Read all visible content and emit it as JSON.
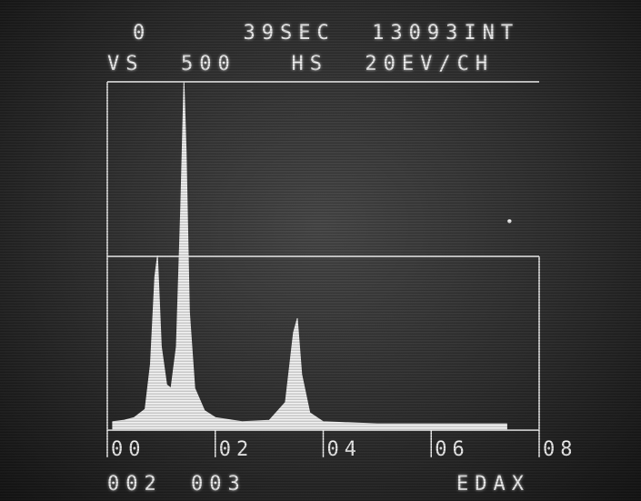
{
  "header": {
    "line1": "0     39SEC  13093INT",
    "line2": "VS  500   HS  20EV/CH"
  },
  "footer": {
    "left_codes": [
      "002",
      "003"
    ],
    "brand": "EDAX"
  },
  "chart_data": {
    "type": "line",
    "title": "",
    "xlabel": "",
    "ylabel": "",
    "x_tick_labels": [
      "00",
      "02",
      "04",
      "06",
      "08"
    ],
    "xlim": [
      0.0,
      8.0
    ],
    "ylim": [
      0,
      500
    ],
    "grid": false,
    "series": [
      {
        "values": [
          [
            0.1,
            12
          ],
          [
            0.3,
            14
          ],
          [
            0.5,
            18
          ],
          [
            0.7,
            30
          ],
          [
            0.8,
            95
          ],
          [
            0.88,
            220
          ],
          [
            0.93,
            250
          ],
          [
            1.0,
            120
          ],
          [
            1.1,
            65
          ],
          [
            1.18,
            60
          ],
          [
            1.28,
            120
          ],
          [
            1.36,
            320
          ],
          [
            1.42,
            510
          ],
          [
            1.46,
            400
          ],
          [
            1.52,
            170
          ],
          [
            1.62,
            60
          ],
          [
            1.8,
            28
          ],
          [
            2.0,
            18
          ],
          [
            2.5,
            12
          ],
          [
            3.0,
            14
          ],
          [
            3.3,
            40
          ],
          [
            3.45,
            140
          ],
          [
            3.52,
            160
          ],
          [
            3.6,
            80
          ],
          [
            3.75,
            25
          ],
          [
            4.0,
            12
          ],
          [
            5.0,
            9
          ],
          [
            6.0,
            9
          ],
          [
            7.0,
            9
          ],
          [
            7.4,
            9
          ]
        ]
      }
    ],
    "markers": [
      {
        "x": 7.45,
        "y": 300
      }
    ]
  },
  "colors": {
    "phosphor": "#f2f2f2",
    "background": "#2e2e2e"
  }
}
